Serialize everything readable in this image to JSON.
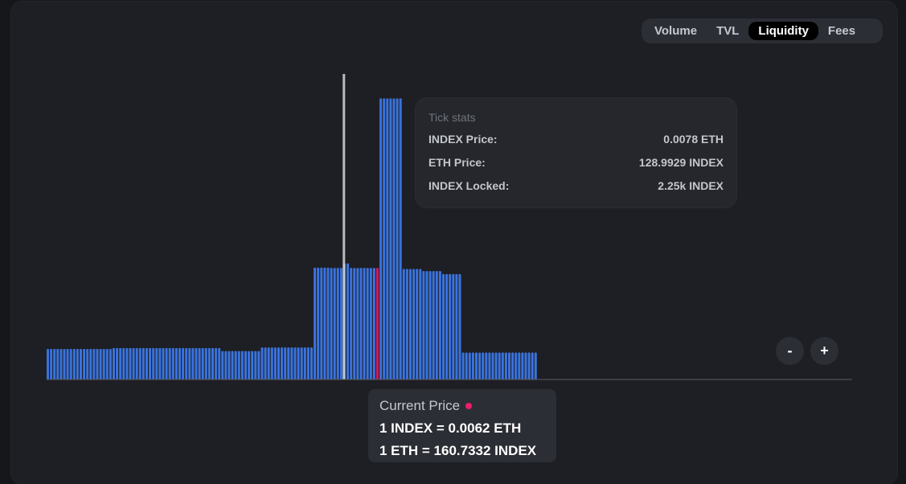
{
  "toggle": {
    "options": [
      {
        "label": "Volume",
        "active": false
      },
      {
        "label": "TVL",
        "active": false
      },
      {
        "label": "Liquidity",
        "active": true
      },
      {
        "label": "Fees",
        "active": false
      }
    ]
  },
  "tooltip": {
    "title": "Tick stats",
    "rows": [
      {
        "label": "INDEX Price:",
        "value": "0.0078 ETH"
      },
      {
        "label": "ETH Price:",
        "value": "128.9929 INDEX"
      },
      {
        "label": "INDEX Locked:",
        "value": "2.25k INDEX"
      }
    ]
  },
  "zoom": {
    "minus": "-",
    "plus": "+"
  },
  "current_price": {
    "title": "Current Price",
    "line1": "1 INDEX = 0.0062 ETH",
    "line2": "1 ETH = 160.7332 INDEX"
  },
  "colors": {
    "bar": "#3a73dd",
    "current_bar": "#d81563",
    "hover_marker": "#d6d6d6",
    "baseline": "#5a5d66"
  },
  "chart_data": {
    "type": "bar",
    "title": "",
    "xlabel": "",
    "ylabel": "",
    "grid": false,
    "ylim": [
      0,
      100
    ],
    "current_index": 100,
    "hover_index": 89,
    "values": [
      10,
      10,
      10,
      10,
      10,
      10,
      10,
      10,
      10,
      10,
      10,
      10,
      10,
      10,
      10,
      10,
      10,
      10,
      10,
      10,
      10.3,
      10.3,
      10.3,
      10.3,
      10.3,
      10.3,
      10.3,
      10.3,
      10.3,
      10.3,
      10.3,
      10.3,
      10.3,
      10.3,
      10.3,
      10.3,
      10.3,
      10.3,
      10.3,
      10.3,
      10.3,
      10.3,
      10.3,
      10.3,
      10.3,
      10.3,
      10.3,
      10.3,
      10.3,
      10.3,
      10.3,
      10.3,
      10.3,
      9.3,
      9.3,
      9.3,
      9.3,
      9.3,
      9.3,
      9.3,
      9.3,
      9.3,
      9.3,
      9.3,
      9.3,
      10.5,
      10.5,
      10.5,
      10.5,
      10.5,
      10.5,
      10.5,
      10.5,
      10.5,
      10.5,
      10.5,
      10.5,
      10.5,
      10.5,
      10.5,
      10.5,
      36.6,
      36.6,
      36.6,
      36.6,
      36.6,
      36.5,
      36.5,
      36.5,
      36.5,
      38,
      38,
      36.5,
      36.5,
      36.5,
      36.5,
      36.5,
      36.5,
      36.5,
      36.5,
      36.5,
      92,
      92,
      92,
      92,
      92,
      92,
      92,
      36.2,
      36.2,
      36.2,
      36.2,
      36.2,
      36.2,
      35.5,
      35.5,
      35.5,
      35.5,
      35.5,
      35.5,
      34.5,
      34.5,
      34.5,
      34.5,
      34.5,
      34.5,
      8.8,
      8.8,
      8.8,
      8.8,
      8.8,
      8.8,
      8.8,
      8.8,
      8.8,
      8.8,
      8.8,
      8.8,
      8.8,
      8.8,
      8.8,
      8.8,
      8.8,
      8.8,
      8.8,
      8.8,
      8.8,
      8.8,
      8.8
    ]
  }
}
